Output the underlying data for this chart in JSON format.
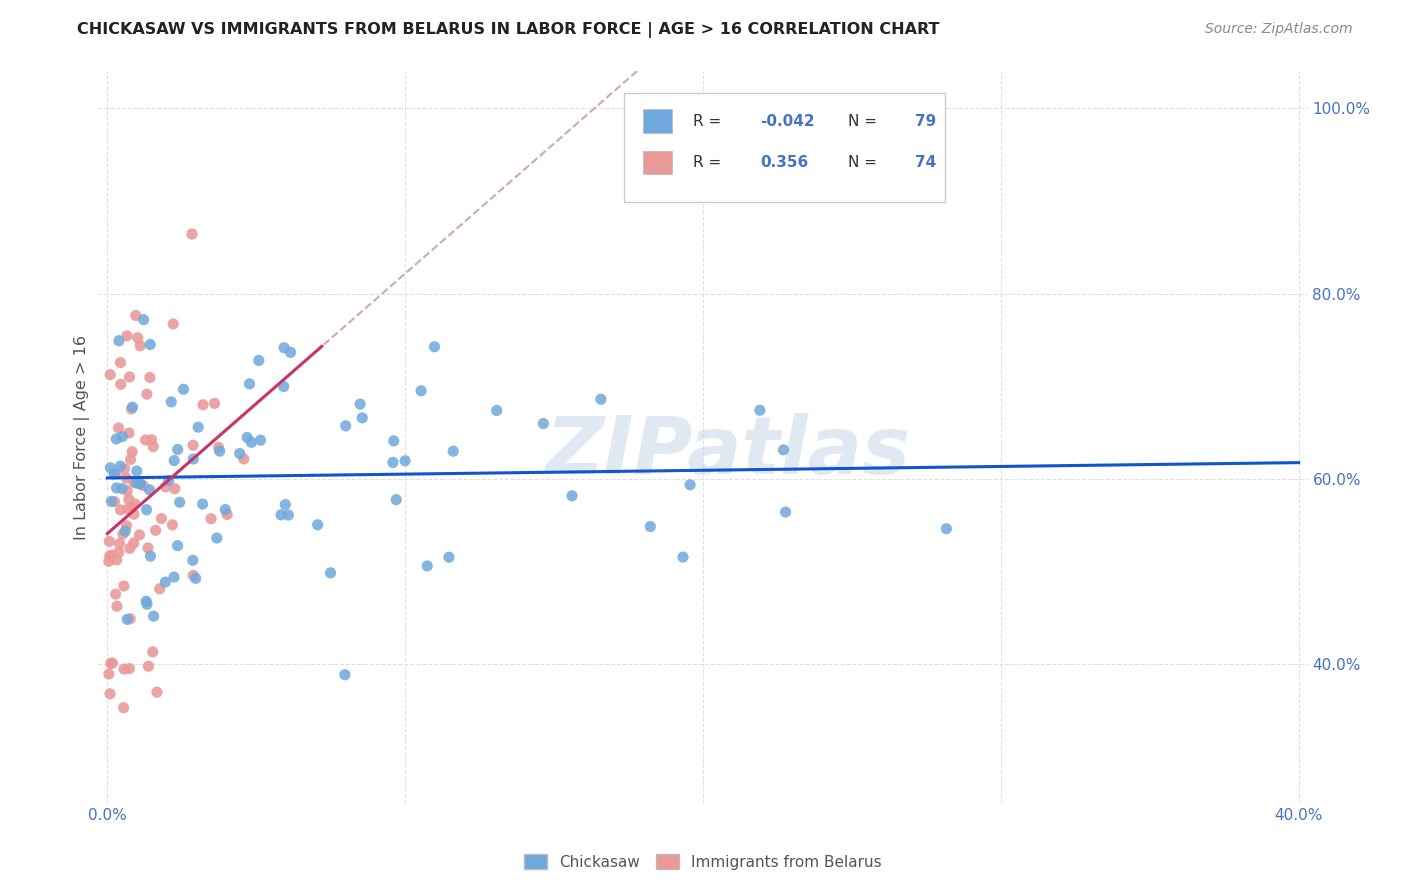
{
  "title": "CHICKASAW VS IMMIGRANTS FROM BELARUS IN LABOR FORCE | AGE > 16 CORRELATION CHART",
  "source": "Source: ZipAtlas.com",
  "ylabel": "In Labor Force | Age > 16",
  "xlim": [
    -0.003,
    0.403
  ],
  "ylim": [
    0.25,
    1.04
  ],
  "xtick_vals": [
    0.0,
    0.1,
    0.2,
    0.3,
    0.4
  ],
  "xtick_labels": [
    "0.0%",
    "",
    "",
    "",
    "40.0%"
  ],
  "ytick_vals": [
    0.4,
    0.6,
    0.8,
    1.0
  ],
  "ytick_labels": [
    "40.0%",
    "60.0%",
    "80.0%",
    "100.0%"
  ],
  "legend_r_blue": "-0.042",
  "legend_n_blue": "79",
  "legend_r_pink": "0.356",
  "legend_n_pink": "74",
  "blue_color": "#6fa8dc",
  "pink_color": "#ea9999",
  "blue_line_color": "#1155cc",
  "pink_line_color": "#cc3366",
  "pink_dash_color": "#ccaaaa",
  "watermark": "ZIPatlas",
  "grid_color": "#e0e0e0",
  "tick_color": "#4472c4"
}
